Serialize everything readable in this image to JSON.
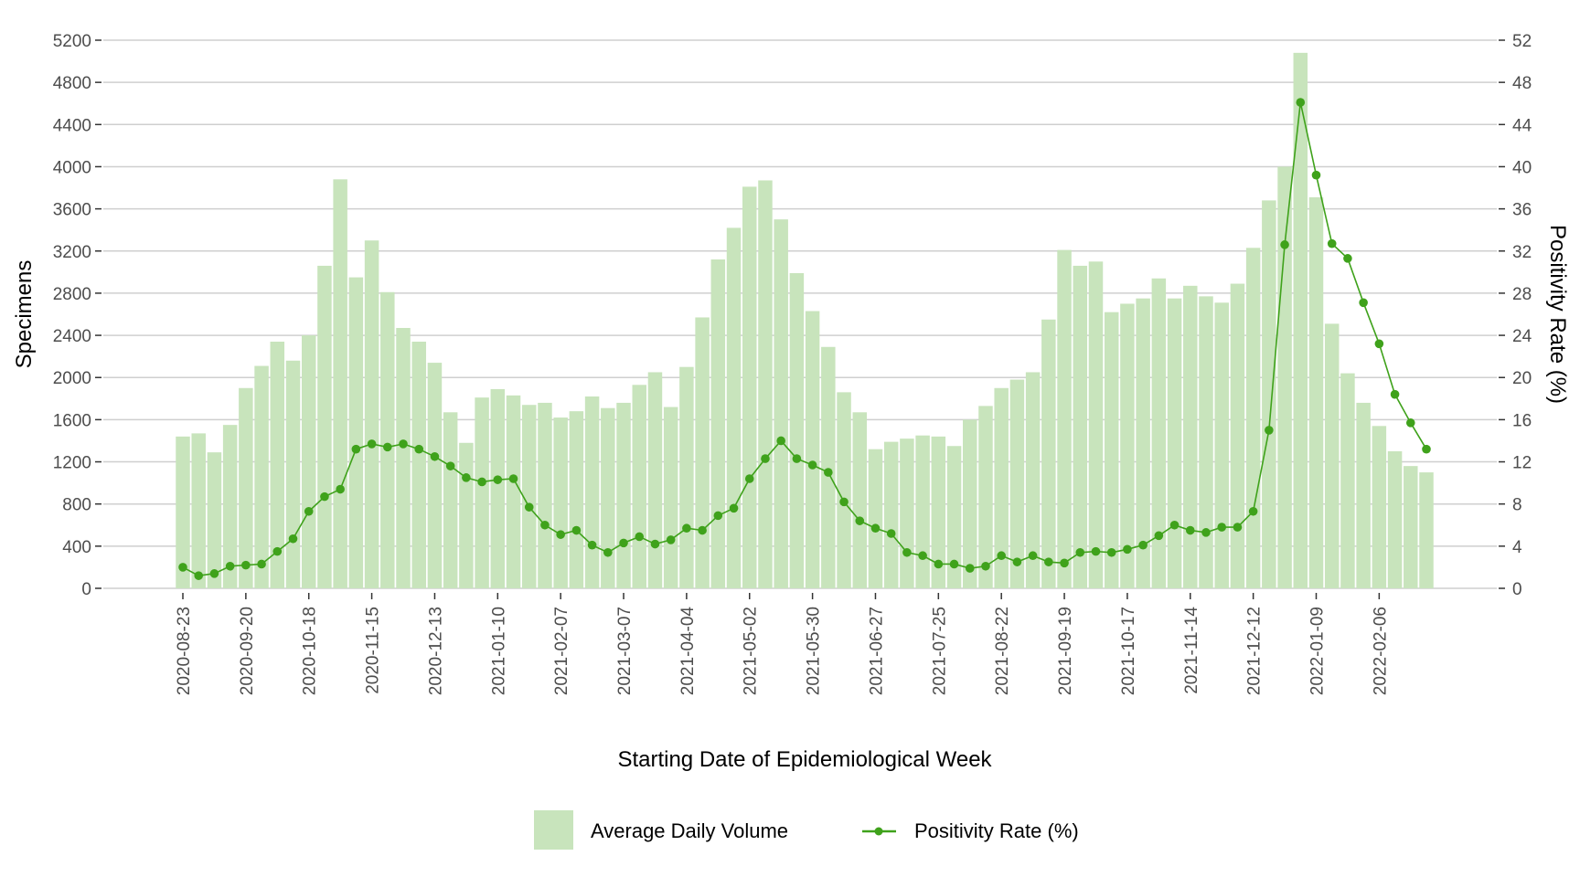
{
  "chart_data": {
    "type": "bar+line",
    "xlabel": "Starting Date of Epidemiological Week",
    "ylabel_left": "Specimens",
    "ylabel_right": "Positivity Rate (%)",
    "ylim_left": [
      0,
      5200
    ],
    "ylim_right": [
      0,
      52
    ],
    "yticks_left": [
      0,
      400,
      800,
      1200,
      1600,
      2000,
      2400,
      2800,
      3200,
      3600,
      4000,
      4400,
      4800,
      5200
    ],
    "yticks_right": [
      0,
      4,
      8,
      12,
      16,
      20,
      24,
      28,
      32,
      36,
      40,
      44,
      48,
      52
    ],
    "xtick_labels": [
      "2020-08-23",
      "2020-09-20",
      "2020-10-18",
      "2020-11-15",
      "2020-12-13",
      "2021-01-10",
      "2021-02-07",
      "2021-03-07",
      "2021-04-04",
      "2021-05-02",
      "2021-05-30",
      "2021-06-27",
      "2021-07-25",
      "2021-08-22",
      "2021-09-19",
      "2021-10-17",
      "2021-11-14",
      "2021-12-12",
      "2022-01-09",
      "2022-02-06"
    ],
    "grid": "horizontal",
    "legend_position": "bottom",
    "colors": {
      "bars": "#c8e4bc",
      "line": "#3fa21b",
      "grid": "#cfcfcf",
      "tick_text": "#4d4d4d"
    },
    "x_start": "2020-08-23",
    "x_interval": "weekly",
    "series": [
      {
        "name": "Average Daily Volume",
        "type": "bar",
        "axis": "left",
        "values": [
          1440,
          1470,
          1290,
          1550,
          1900,
          2110,
          2340,
          2160,
          2400,
          3060,
          3880,
          2950,
          3300,
          2810,
          2470,
          2340,
          2140,
          1670,
          1380,
          1810,
          1890,
          1830,
          1740,
          1760,
          1620,
          1680,
          1820,
          1710,
          1760,
          1930,
          2050,
          1720,
          2100,
          2570,
          3120,
          3420,
          3810,
          3870,
          3500,
          2990,
          2630,
          2290,
          1860,
          1670,
          1320,
          1390,
          1420,
          1450,
          1440,
          1350,
          1600,
          1730,
          1900,
          1980,
          2050,
          2550,
          3210,
          3060,
          3100,
          2620,
          2700,
          2750,
          2940,
          2750,
          2870,
          2770,
          2710,
          2890,
          3230,
          3680,
          4000,
          5080,
          3710,
          2510,
          2040,
          1760,
          1540,
          1300,
          1160,
          1100
        ]
      },
      {
        "name": "Positivity Rate (%)",
        "type": "line",
        "axis": "right",
        "values": [
          2.0,
          1.2,
          1.4,
          2.1,
          2.2,
          2.3,
          3.5,
          4.7,
          7.3,
          8.7,
          9.4,
          13.2,
          13.7,
          13.4,
          13.7,
          13.2,
          12.5,
          11.6,
          10.5,
          10.1,
          10.3,
          10.4,
          7.7,
          6.0,
          5.1,
          5.5,
          4.1,
          3.4,
          4.3,
          4.9,
          4.2,
          4.6,
          5.7,
          5.5,
          6.9,
          7.6,
          10.4,
          12.3,
          14.0,
          12.3,
          11.7,
          11.0,
          8.2,
          6.4,
          5.7,
          5.2,
          3.4,
          3.1,
          2.3,
          2.3,
          1.9,
          2.1,
          3.1,
          2.5,
          3.1,
          2.5,
          2.4,
          3.4,
          3.5,
          3.4,
          3.7,
          4.1,
          5.0,
          6.0,
          5.5,
          5.3,
          5.8,
          5.8,
          7.3,
          15.0,
          32.6,
          46.1,
          39.2,
          32.7,
          31.3,
          27.1,
          23.2,
          18.4,
          15.7,
          13.2
        ]
      }
    ]
  },
  "legend": {
    "items": [
      {
        "label": "Average Daily Volume",
        "icon": "square-swatch"
      },
      {
        "label": "Positivity Rate (%)",
        "icon": "line-with-point"
      }
    ]
  }
}
